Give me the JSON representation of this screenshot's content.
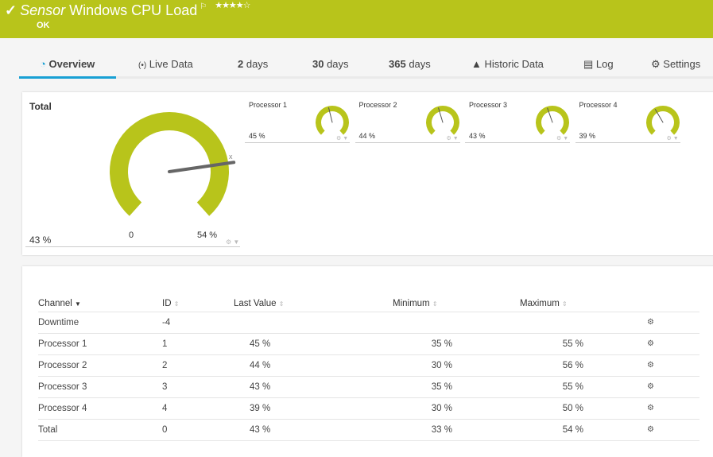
{
  "header": {
    "check_icon": "checkmark-icon",
    "prefix": "Sensor",
    "title": "Windows CPU Load",
    "flag_icon": "flag-icon",
    "stars": "★★★★☆",
    "status": "OK",
    "color": "#b8c41b"
  },
  "tabs": [
    {
      "icon": "◔",
      "label": "Overview",
      "name": "overview"
    },
    {
      "icon": "(•)",
      "label": "Live Data",
      "name": "live-data"
    },
    {
      "num": "2",
      "label": " days",
      "name": "2-days"
    },
    {
      "num": "30",
      "label": " days",
      "name": "30-days"
    },
    {
      "num": "365",
      "label": " days",
      "name": "365-days"
    },
    {
      "icon": "▲",
      "label": "Historic Data",
      "name": "historic-data"
    },
    {
      "icon": "▤",
      "label": "Log",
      "name": "log"
    },
    {
      "icon": "⚙",
      "label": "Settings",
      "name": "settings"
    }
  ],
  "total_gauge": {
    "label": "Total",
    "value": "43 %",
    "min": "0",
    "max": "54 %",
    "value_num": 43,
    "max_num": 54,
    "marker": "x"
  },
  "processor_gauges": [
    {
      "label": "Processor 1",
      "value": "45 %",
      "value_num": 45
    },
    {
      "label": "Processor 2",
      "value": "44 %",
      "value_num": 44
    },
    {
      "label": "Processor 3",
      "value": "43 %",
      "value_num": 43
    },
    {
      "label": "Processor 4",
      "value": "39 %",
      "value_num": 39
    }
  ],
  "table": {
    "headers": [
      "Channel",
      "ID",
      "Last Value",
      "Minimum",
      "Maximum"
    ],
    "rows": [
      [
        "Downtime",
        "-4",
        "",
        "",
        ""
      ],
      [
        "Processor 1",
        "1",
        "45 %",
        "35 %",
        "55 %"
      ],
      [
        "Processor 2",
        "2",
        "44 %",
        "30 %",
        "56 %"
      ],
      [
        "Processor 3",
        "3",
        "43 %",
        "35 %",
        "55 %"
      ],
      [
        "Processor 4",
        "4",
        "39 %",
        "30 %",
        "50 %"
      ],
      [
        "Total",
        "0",
        "43 %",
        "33 %",
        "54 %"
      ]
    ]
  }
}
